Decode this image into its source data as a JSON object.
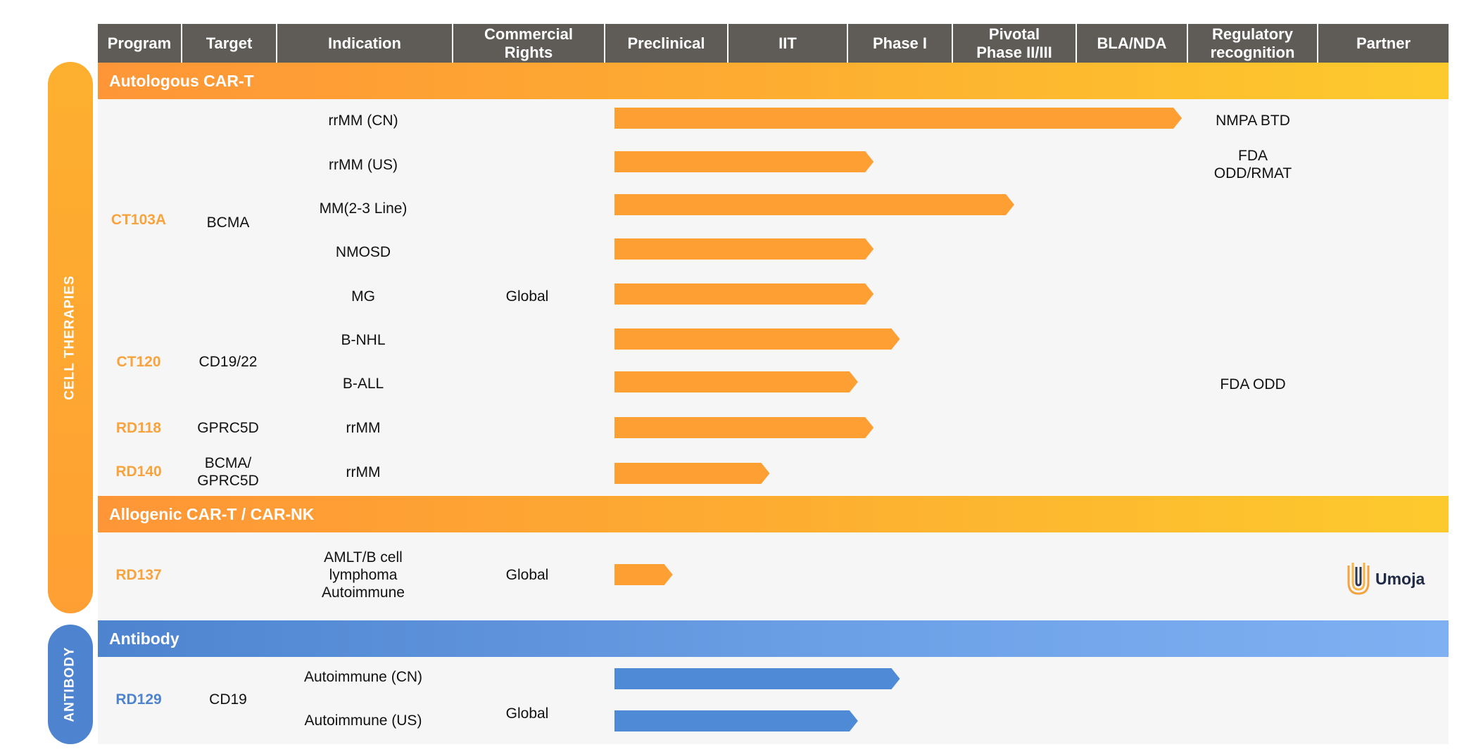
{
  "header": {
    "program": "Program",
    "target": "Target",
    "indication": "Indication",
    "commercial_rights": "Commercial Rights",
    "preclinical": "Preclinical",
    "iit": "IIT",
    "phase1": "Phase I",
    "pivotal": "Pivotal Phase II/III",
    "bla_nda": "BLA/NDA",
    "regulatory": "Regulatory recognition",
    "partner": "Partner"
  },
  "side_labels": {
    "cell_therapies": "CELL THERAPIES",
    "antibody": "ANTIBODY"
  },
  "sections": {
    "autologous": "Autologous CAR-T",
    "allogenic": "Allogenic CAR-T / CAR-NK",
    "antibody": "Antibody"
  },
  "programs": {
    "ct103a": "CT103A",
    "ct120": "CT120",
    "rd118": "RD118",
    "rd140": "RD140",
    "rd137": "RD137",
    "rd129": "RD129"
  },
  "targets": {
    "ct103a": "BCMA",
    "ct120": "CD19/22",
    "rd118": "GPRC5D",
    "rd140_line1": "BCMA/",
    "rd140_line2": "GPRC5D",
    "rd129": "CD19"
  },
  "indications": {
    "r1": "rrMM (CN)",
    "r2": "rrMM (US)",
    "r3": "MM(2-3 Line)",
    "r4": "NMOSD",
    "r5": "MG",
    "r6": "B-NHL",
    "r7": "B-ALL",
    "r8": "rrMM",
    "r9": "rrMM",
    "r10_line1": "AMLT/B cell",
    "r10_line2": "lymphoma",
    "r10_line3": "Autoimmune",
    "r11": "Autoimmune (CN)",
    "r12": "Autoimmune (US)"
  },
  "rights": {
    "autologous": "Global",
    "allogenic": "Global",
    "antibody": "Global"
  },
  "regulatory": {
    "r1": "NMPA BTD",
    "r2_line1": "FDA",
    "r2_line2": "ODD/RMAT",
    "r7": "FDA ODD"
  },
  "partner": {
    "logo_word": "Umoja"
  },
  "colors": {
    "header_bg": "#5f5b57",
    "orange": "#fe9f33",
    "blue": "#4e84cf",
    "panel": "#f6f6f6"
  },
  "chart_data": {
    "type": "bar",
    "orientation": "horizontal",
    "stages": [
      "Preclinical",
      "IIT",
      "Phase I",
      "Pivotal Phase II/III",
      "BLA/NDA"
    ],
    "rows": [
      {
        "program": "CT103A",
        "indication": "rrMM (CN)",
        "progress_stages": 4.95,
        "color": "orange"
      },
      {
        "program": "CT103A",
        "indication": "rrMM (US)",
        "progress_stages": 2.25,
        "color": "orange"
      },
      {
        "program": "CT103A",
        "indication": "MM(2-3 Line)",
        "progress_stages": 3.5,
        "color": "orange"
      },
      {
        "program": "CT103A",
        "indication": "NMOSD",
        "progress_stages": 2.25,
        "color": "orange"
      },
      {
        "program": "CT103A",
        "indication": "MG",
        "progress_stages": 2.25,
        "color": "orange"
      },
      {
        "program": "CT120",
        "indication": "B-NHL",
        "progress_stages": 2.5,
        "color": "orange"
      },
      {
        "program": "CT120",
        "indication": "B-ALL",
        "progress_stages": 2.1,
        "color": "orange"
      },
      {
        "program": "RD118",
        "indication": "rrMM",
        "progress_stages": 2.25,
        "color": "orange"
      },
      {
        "program": "RD140",
        "indication": "rrMM",
        "progress_stages": 1.35,
        "color": "orange"
      },
      {
        "program": "RD137",
        "indication": "AMLT/B cell lymphoma Autoimmune",
        "progress_stages": 0.55,
        "color": "orange"
      },
      {
        "program": "RD129",
        "indication": "Autoimmune (CN)",
        "progress_stages": 2.5,
        "color": "blue"
      },
      {
        "program": "RD129",
        "indication": "Autoimmune (US)",
        "progress_stages": 2.1,
        "color": "blue"
      }
    ]
  }
}
